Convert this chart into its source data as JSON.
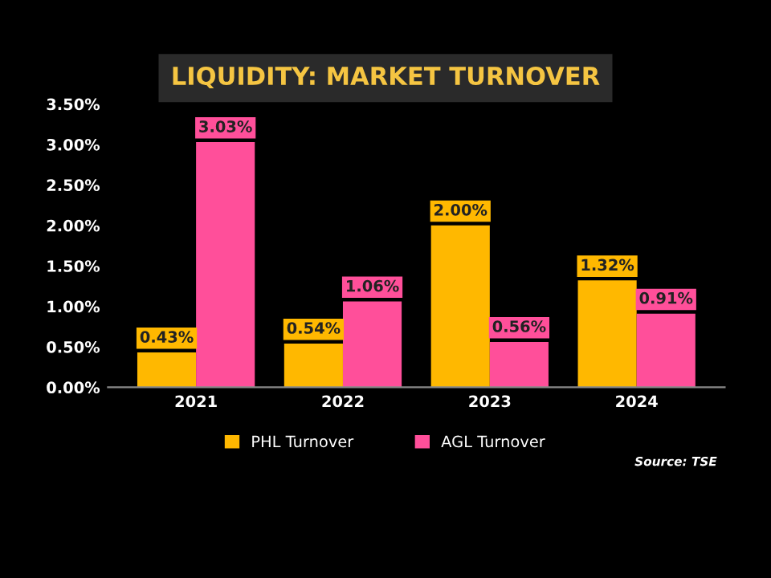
{
  "chart_data": {
    "type": "bar",
    "title": "LIQUIDITY: MARKET TURNOVER",
    "categories": [
      "2021",
      "2022",
      "2023",
      "2024"
    ],
    "series": [
      {
        "name": "PHL Turnover",
        "color": "#ffb800",
        "values": [
          0.43,
          0.54,
          2.0,
          1.32
        ],
        "value_labels": [
          "0.43%",
          "0.54%",
          "2.00%",
          "1.32%"
        ]
      },
      {
        "name": "AGL Turnover",
        "color": "#ff4f9a",
        "values": [
          3.03,
          1.06,
          0.56,
          0.91
        ],
        "value_labels": [
          "3.03%",
          "1.06%",
          "0.56%",
          "0.91%"
        ]
      }
    ],
    "ylim": [
      0,
      3.5
    ],
    "yticks": [
      {
        "value": 0,
        "label": "0.00%"
      },
      {
        "value": 0.5,
        "label": "0.50%"
      },
      {
        "value": 1,
        "label": "1.00%"
      },
      {
        "value": 1.5,
        "label": "1.50%"
      },
      {
        "value": 2,
        "label": "2.00%"
      },
      {
        "value": 2.5,
        "label": "2.50%"
      },
      {
        "value": 3,
        "label": "3.00%"
      },
      {
        "value": 3.5,
        "label": "3.50%"
      }
    ],
    "grid": false,
    "legend": "bottom",
    "annotations": [
      "Source: TSE"
    ]
  }
}
